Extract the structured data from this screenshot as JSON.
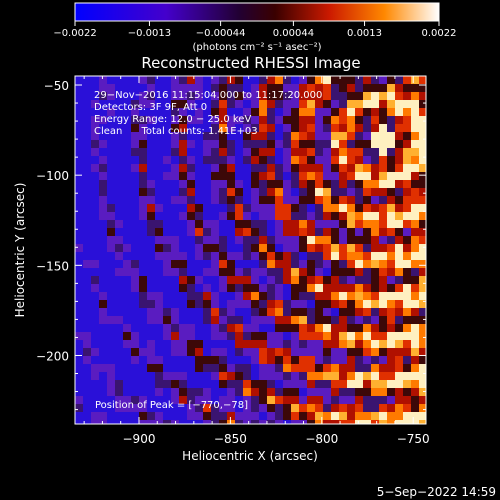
{
  "chart_data": {
    "type": "heatmap",
    "title": "Reconstructed RHESSI Image",
    "xlabel": "Heliocentric X (arcsec)",
    "ylabel": "Heliocentric Y (arcsec)",
    "xlim": [
      -935,
      -743
    ],
    "ylim": [
      -238,
      -45
    ],
    "x_ticks": [
      -900,
      -850,
      -800,
      -750
    ],
    "x_tick_labels": [
      "−900",
      "−850",
      "−800",
      "−750"
    ],
    "y_ticks": [
      -50,
      -100,
      -150,
      -200
    ],
    "y_tick_labels": [
      "−50",
      "−100",
      "−150",
      "−200"
    ],
    "colorbar": {
      "range": [
        -0.0022,
        0.0022
      ],
      "ticks": [
        -0.0022,
        -0.0013,
        -0.00044,
        0.00044,
        0.0013,
        0.0022
      ],
      "tick_labels": [
        "−0.0022",
        "−0.0013",
        "−0.00044",
        "0.00044",
        "0.0013",
        "0.0022"
      ],
      "unit_label": "(photons cm⁻² s⁻¹ asec⁻²)"
    },
    "info_lines": [
      "29−Nov−2016 11:15:04.000 to 11:17:20.000",
      "Detectors: 3F 9F, Att 0",
      "Energy Range: 12.0 − 25.0 keV",
      "Clean      Total counts: 1.41E+03"
    ],
    "peak_label": "Position of Peak = [−770,−78]",
    "peak": [
      -770,
      -78
    ],
    "grid": false
  },
  "footer": {
    "date": "5−Sep−2022 14:59"
  }
}
